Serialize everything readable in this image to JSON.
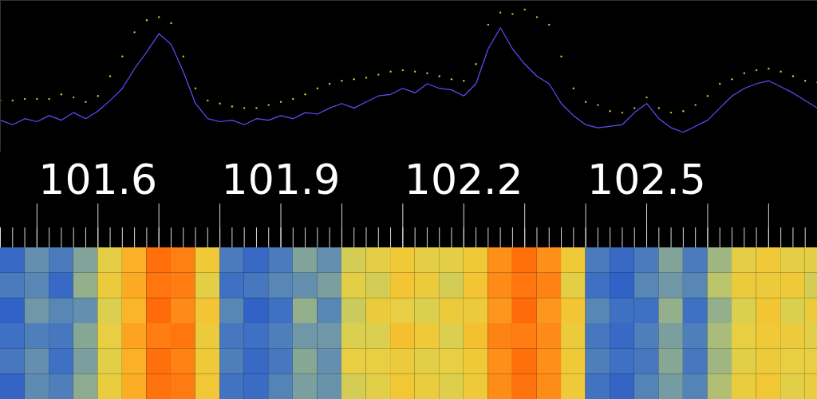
{
  "chart_data": [
    {
      "type": "spectrum",
      "tick_labels": "x",
      "xlim": [
        101.44,
        102.78
      ],
      "xticks": [
        101.6,
        101.9,
        102.2,
        102.5
      ],
      "ylim": [
        0,
        100
      ],
      "x": [
        101.44,
        101.46,
        101.48,
        101.5,
        101.52,
        101.54,
        101.56,
        101.58,
        101.6,
        101.62,
        101.64,
        101.66,
        101.68,
        101.7,
        101.72,
        101.74,
        101.76,
        101.78,
        101.8,
        101.82,
        101.84,
        101.86,
        101.88,
        101.9,
        101.92,
        101.94,
        101.96,
        101.98,
        102,
        102.02,
        102.04,
        102.06,
        102.08,
        102.1,
        102.12,
        102.14,
        102.16,
        102.18,
        102.2,
        102.22,
        102.24,
        102.26,
        102.28,
        102.3,
        102.32,
        102.34,
        102.36,
        102.38,
        102.4,
        102.42,
        102.44,
        102.46,
        102.48,
        102.5,
        102.52,
        102.54,
        102.56,
        102.58,
        102.6,
        102.62,
        102.64,
        102.66,
        102.68,
        102.7,
        102.72,
        102.74,
        102.76,
        102.78
      ],
      "series": [
        {
          "type": "line",
          "color": "#5a50ff",
          "values": [
            21,
            18,
            22,
            20,
            24,
            21,
            26,
            22,
            27,
            34,
            42,
            55,
            66,
            78,
            71,
            53,
            32,
            22,
            20,
            21,
            18,
            22,
            21,
            24,
            22,
            26,
            25,
            29,
            32,
            29,
            33,
            37,
            38,
            42,
            39,
            45,
            42,
            41,
            37,
            45,
            68,
            82,
            68,
            58,
            50,
            45,
            32,
            24,
            18,
            16,
            17,
            18,
            26,
            32,
            22,
            16,
            13,
            17,
            21,
            29,
            37,
            42,
            45,
            47,
            43,
            39,
            34,
            29
          ]
        },
        {
          "type": "scatter",
          "marker": "dot",
          "color": "#c8c03c",
          "values": [
            34,
            34,
            35,
            35,
            35,
            38,
            36,
            33,
            37,
            50,
            63,
            79,
            87,
            89,
            85,
            63,
            42,
            34,
            32,
            30,
            29,
            29,
            31,
            33,
            35,
            38,
            42,
            45,
            47,
            48,
            49,
            51,
            53,
            54,
            53,
            52,
            50,
            48,
            47,
            58,
            84,
            92,
            91,
            94,
            89,
            84,
            63,
            42,
            33,
            31,
            27,
            26,
            29,
            36,
            29,
            26,
            27,
            31,
            37,
            45,
            48,
            52,
            54,
            55,
            53,
            50,
            47,
            46
          ]
        }
      ]
    },
    {
      "type": "heatmap",
      "x": [
        101.44,
        101.48,
        101.52,
        101.56,
        101.6,
        101.64,
        101.68,
        101.72,
        101.76,
        101.8,
        101.84,
        101.88,
        101.92,
        101.96,
        102,
        102.04,
        102.08,
        102.12,
        102.16,
        102.2,
        102.24,
        102.28,
        102.32,
        102.36,
        102.4,
        102.44,
        102.48,
        102.52,
        102.56,
        102.6,
        102.64,
        102.68,
        102.72,
        102.76,
        102.8
      ],
      "zlim": [
        0,
        100
      ],
      "colors": [
        "#1030b0",
        "#3070e0",
        "#f0f040",
        "#ffa020",
        "#ff5000"
      ],
      "cells": [
        [
          20,
          30,
          25,
          35,
          55,
          70,
          90,
          85,
          60,
          25,
          20,
          25,
          35,
          30,
          50,
          55,
          60,
          55,
          55,
          60,
          80,
          90,
          80,
          60,
          25,
          20,
          25,
          35,
          25,
          40,
          55,
          60,
          55,
          55
        ],
        [
          25,
          28,
          20,
          38,
          58,
          72,
          88,
          86,
          55,
          22,
          24,
          28,
          30,
          34,
          55,
          50,
          62,
          58,
          50,
          62,
          82,
          88,
          84,
          55,
          22,
          18,
          28,
          32,
          28,
          45,
          58,
          58,
          60,
          50
        ],
        [
          18,
          32,
          28,
          30,
          52,
          68,
          92,
          82,
          62,
          28,
          18,
          22,
          38,
          28,
          48,
          58,
          56,
          52,
          58,
          58,
          78,
          92,
          78,
          62,
          28,
          22,
          22,
          38,
          22,
          38,
          52,
          62,
          52,
          58
        ],
        [
          22,
          26,
          24,
          36,
          56,
          74,
          86,
          88,
          58,
          24,
          22,
          26,
          32,
          32,
          52,
          52,
          64,
          60,
          52,
          64,
          84,
          86,
          82,
          58,
          24,
          20,
          26,
          34,
          26,
          42,
          56,
          60,
          58,
          54
        ],
        [
          24,
          30,
          22,
          34,
          54,
          70,
          90,
          84,
          60,
          26,
          20,
          24,
          36,
          30,
          56,
          56,
          58,
          54,
          56,
          60,
          80,
          90,
          80,
          60,
          26,
          22,
          24,
          36,
          24,
          40,
          54,
          58,
          56,
          56
        ],
        [
          19,
          29,
          26,
          37,
          57,
          71,
          89,
          87,
          61,
          23,
          21,
          27,
          34,
          31,
          50,
          54,
          61,
          57,
          53,
          59,
          81,
          89,
          81,
          59,
          23,
          19,
          27,
          33,
          27,
          43,
          57,
          61,
          54,
          57
        ]
      ]
    }
  ]
}
